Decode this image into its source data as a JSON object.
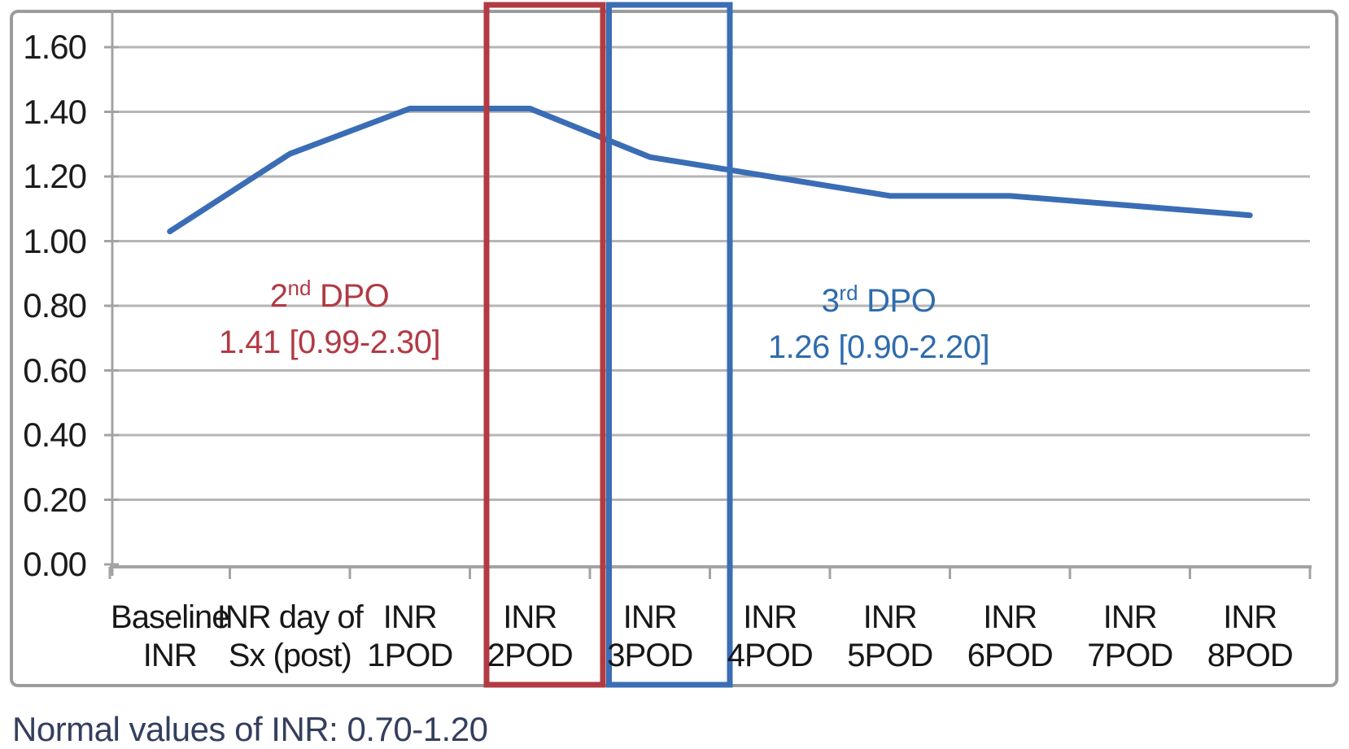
{
  "chart_data": {
    "type": "line",
    "title": "",
    "series_name": "INR",
    "categories": [
      {
        "line1": "Baseline",
        "line2": "INR"
      },
      {
        "line1": "INR day of",
        "line2": "Sx (post)"
      },
      {
        "line1": "INR",
        "line2": "1POD"
      },
      {
        "line1": "INR",
        "line2": "2POD"
      },
      {
        "line1": "INR",
        "line2": "3POD"
      },
      {
        "line1": "INR",
        "line2": "4POD"
      },
      {
        "line1": "INR",
        "line2": "5POD"
      },
      {
        "line1": "INR",
        "line2": "6POD"
      },
      {
        "line1": "INR",
        "line2": "7POD"
      },
      {
        "line1": "INR",
        "line2": "8POD"
      }
    ],
    "values": [
      1.03,
      1.27,
      1.41,
      1.41,
      1.26,
      1.2,
      1.14,
      1.14,
      1.11,
      1.08
    ],
    "ylim": [
      0.0,
      1.6
    ],
    "ytick_labels": [
      "0.00",
      "0.20",
      "0.40",
      "0.60",
      "0.80",
      "1.00",
      "1.20",
      "1.40",
      "1.60"
    ],
    "ytick_values": [
      0.0,
      0.2,
      0.4,
      0.6,
      0.8,
      1.0,
      1.2,
      1.4,
      1.6
    ],
    "grid": true,
    "legend": "none",
    "xlabel": "",
    "ylabel": "",
    "highlighted_categories": [
      "INR 2POD",
      "INR 3POD"
    ],
    "annotations": [
      {
        "ordinal": "2",
        "ordinal_suffix": "nd",
        "label_rest": " DPO",
        "value_text": "1.41 [0.99-2.30]",
        "color": "#b13a44"
      },
      {
        "ordinal": "3",
        "ordinal_suffix": "rd",
        "label_rest": " DPO",
        "value_text": "1.26 [0.90-2.20]",
        "color": "#2f6bad"
      }
    ]
  },
  "note": "Normal values of INR: 0.70-1.20",
  "colors": {
    "line": "#3a6db5",
    "red_box": "#b23b43",
    "blue_box": "#3a6eb5",
    "grid": "#b5b5b5",
    "axis": "#a3a3a3",
    "frame": "#9c9c9c",
    "note_text": "#343f5e",
    "tick_text": "#1c1c1c"
  }
}
